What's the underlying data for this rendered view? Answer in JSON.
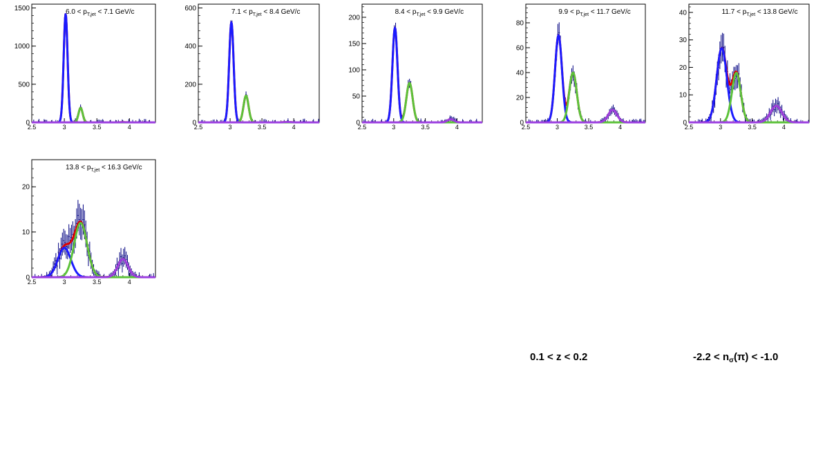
{
  "chart_data": [
    {
      "type": "line",
      "title": "6.0 < p_T,jet < 7.1 GeV/c",
      "title_main": "6.0 < p",
      "title_sub": "T,jet",
      "title_tail": " < 7.1 GeV/c",
      "xlim": [
        2.5,
        4.4
      ],
      "ylim": [
        0,
        1550
      ],
      "xticks": [
        "2.5",
        "3",
        "3.5",
        "4"
      ],
      "xtick_values": [
        2.5,
        3,
        3.5,
        4
      ],
      "yticks": [
        "0",
        "500",
        "1000",
        "1500"
      ],
      "ytick_values": [
        0,
        500,
        1000,
        1500
      ],
      "peaks": [
        {
          "name": "pi",
          "color": "#1a1aff",
          "mu": 3.02,
          "sigma": 0.03,
          "amp": 1420
        },
        {
          "name": "K",
          "color": "#5cc23a",
          "mu": 3.25,
          "sigma": 0.032,
          "amp": 190
        },
        {
          "name": "p",
          "color": "#9b3fe0",
          "mu": 3.9,
          "sigma": 0.05,
          "amp": 2
        }
      ],
      "total_color": "#e00000",
      "data_color": "#000080"
    },
    {
      "type": "line",
      "title": "7.1 < p_T,jet < 8.4 GeV/c",
      "title_main": "7.1 < p",
      "title_sub": "T,jet",
      "title_tail": " < 8.4 GeV/c",
      "xlim": [
        2.5,
        4.4
      ],
      "ylim": [
        0,
        620
      ],
      "xticks": [
        "2.5",
        "3",
        "3.5",
        "4"
      ],
      "xtick_values": [
        2.5,
        3,
        3.5,
        4
      ],
      "yticks": [
        "0",
        "200",
        "400",
        "600"
      ],
      "ytick_values": [
        0,
        200,
        400,
        600
      ],
      "peaks": [
        {
          "name": "pi",
          "color": "#1a1aff",
          "mu": 3.02,
          "sigma": 0.035,
          "amp": 525
        },
        {
          "name": "K",
          "color": "#5cc23a",
          "mu": 3.25,
          "sigma": 0.04,
          "amp": 140
        },
        {
          "name": "p",
          "color": "#9b3fe0",
          "mu": 3.9,
          "sigma": 0.05,
          "amp": 2
        }
      ],
      "total_color": "#e00000",
      "data_color": "#000080"
    },
    {
      "type": "line",
      "title": "8.4 < p_T,jet < 9.9 GeV/c",
      "title_main": "8.4 < p",
      "title_sub": "T,jet",
      "title_tail": " < 9.9 GeV/c",
      "xlim": [
        2.5,
        4.4
      ],
      "ylim": [
        0,
        225
      ],
      "xticks": [
        "2.5",
        "3",
        "3.5",
        "4"
      ],
      "xtick_values": [
        2.5,
        3,
        3.5,
        4
      ],
      "yticks": [
        "0",
        "50",
        "100",
        "150",
        "200"
      ],
      "ytick_values": [
        0,
        50,
        100,
        150,
        200
      ],
      "peaks": [
        {
          "name": "pi",
          "color": "#1a1aff",
          "mu": 3.02,
          "sigma": 0.04,
          "amp": 180
        },
        {
          "name": "K",
          "color": "#5cc23a",
          "mu": 3.25,
          "sigma": 0.05,
          "amp": 75
        },
        {
          "name": "p",
          "color": "#9b3fe0",
          "mu": 3.9,
          "sigma": 0.05,
          "amp": 6
        }
      ],
      "total_color": "#e00000",
      "data_color": "#000080"
    },
    {
      "type": "line",
      "title": "9.9 < p_T,jet < 11.7 GeV/c",
      "title_main": "9.9 < p",
      "title_sub": "T,jet",
      "title_tail": " < 11.7 GeV/c",
      "xlim": [
        2.5,
        4.4
      ],
      "ylim": [
        0,
        95
      ],
      "xticks": [
        "2.5",
        "3",
        "3.5",
        "4"
      ],
      "xtick_values": [
        2.5,
        3,
        3.5,
        4
      ],
      "yticks": [
        "0",
        "20",
        "40",
        "60",
        "80"
      ],
      "ytick_values": [
        0,
        20,
        40,
        60,
        80
      ],
      "peaks": [
        {
          "name": "pi",
          "color": "#1a1aff",
          "mu": 3.02,
          "sigma": 0.055,
          "amp": 70
        },
        {
          "name": "K",
          "color": "#5cc23a",
          "mu": 3.25,
          "sigma": 0.06,
          "amp": 40
        },
        {
          "name": "p",
          "color": "#9b3fe0",
          "mu": 3.88,
          "sigma": 0.07,
          "amp": 10
        }
      ],
      "total_color": "#e00000",
      "data_color": "#000080"
    },
    {
      "type": "line",
      "title": "11.7 < p_T,jet < 13.8 GeV/c",
      "title_main": "11.7 < p",
      "title_sub": "T,jet",
      "title_tail": " < 13.8 GeV/c",
      "xlim": [
        2.5,
        4.4
      ],
      "ylim": [
        0,
        43
      ],
      "xticks": [
        "2.5",
        "3",
        "3.5",
        "4"
      ],
      "xtick_values": [
        2.5,
        3,
        3.5,
        4
      ],
      "yticks": [
        "0",
        "10",
        "20",
        "30",
        "40"
      ],
      "ytick_values": [
        0,
        10,
        20,
        30,
        40
      ],
      "peaks": [
        {
          "name": "pi",
          "color": "#1a1aff",
          "mu": 3.02,
          "sigma": 0.08,
          "amp": 27
        },
        {
          "name": "K",
          "color": "#5cc23a",
          "mu": 3.25,
          "sigma": 0.07,
          "amp": 18
        },
        {
          "name": "p",
          "color": "#9b3fe0",
          "mu": 3.88,
          "sigma": 0.09,
          "amp": 6
        }
      ],
      "total_color": "#e00000",
      "data_color": "#000080"
    },
    {
      "type": "line",
      "title": "13.8 < p_T,jet < 16.3 GeV/c",
      "title_main": "13.8 < p",
      "title_sub": "T,jet",
      "title_tail": " < 16.3 GeV/c",
      "xlim": [
        2.5,
        4.4
      ],
      "ylim": [
        0,
        26
      ],
      "xticks": [
        "2.5",
        "3",
        "3.5",
        "4"
      ],
      "xtick_values": [
        2.5,
        3,
        3.5,
        4
      ],
      "yticks": [
        "0",
        "10",
        "20"
      ],
      "ytick_values": [
        0,
        10,
        20
      ],
      "peaks": [
        {
          "name": "pi",
          "color": "#1a1aff",
          "mu": 3.0,
          "sigma": 0.1,
          "amp": 6.5
        },
        {
          "name": "K",
          "color": "#5cc23a",
          "mu": 3.25,
          "sigma": 0.1,
          "amp": 12
        },
        {
          "name": "p",
          "color": "#9b3fe0",
          "mu": 3.9,
          "sigma": 0.08,
          "amp": 4
        }
      ],
      "total_color": "#e00000",
      "data_color": "#000080"
    }
  ],
  "labels": {
    "z_range": "0.1 < z < 0.2",
    "nsigma_prefix": "-2.2 < n",
    "nsigma_sub": "σ",
    "nsigma_suffix": "(π) < -1.0"
  }
}
